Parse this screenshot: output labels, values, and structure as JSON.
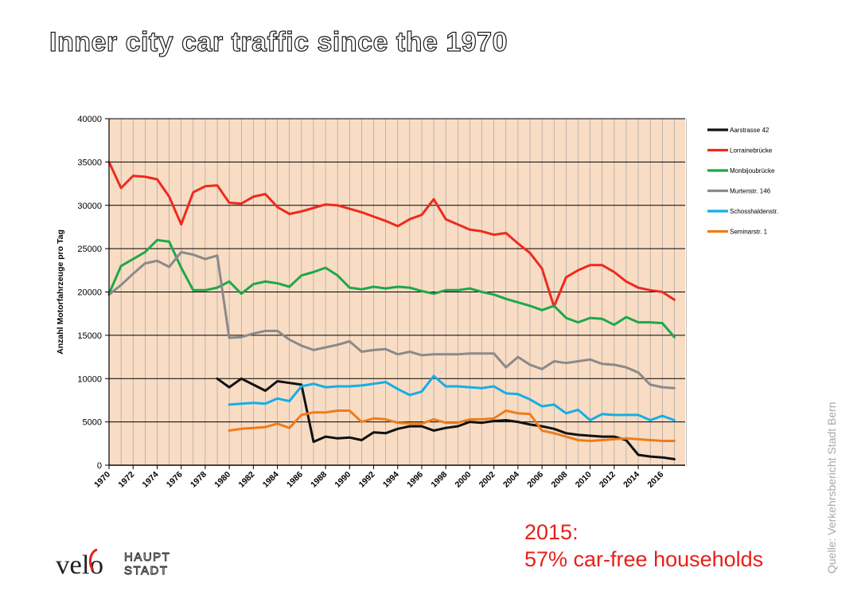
{
  "slide": {
    "title": "Inner city car traffic since the 1970",
    "callout_year": "2015:",
    "callout_text": "57% car-free households",
    "source": "Quelle: Verkehrsbericht Stadt Bern",
    "logo_top": "HAUPT",
    "logo_bottom": "STADT",
    "logo_velo": "velo"
  },
  "colors": {
    "plot_bg": "#f8dcc4",
    "grid_major": "#000000",
    "grid_minor": "#9a9a9a"
  },
  "chart_data": {
    "type": "line",
    "title": "",
    "xlabel": "",
    "ylabel": "Anzahl Motorfahrzeuge pro Tag",
    "xlim": [
      1970,
      2017
    ],
    "ylim": [
      0,
      40000
    ],
    "yticks": [
      0,
      5000,
      10000,
      15000,
      20000,
      25000,
      30000,
      35000,
      40000
    ],
    "ytick_labels": [
      "0",
      "5000",
      "10000",
      "15000",
      "20000",
      "25000",
      "30000",
      "35000",
      "40000"
    ],
    "xtick_labels": [
      "1970",
      "1972",
      "1974",
      "1976",
      "1978",
      "1980",
      "1982",
      "1984",
      "1986",
      "1988",
      "1990",
      "1992",
      "1994",
      "1996",
      "1998",
      "2000",
      "2002",
      "2004",
      "2006",
      "2008",
      "2010",
      "2012",
      "2014",
      "2016"
    ],
    "xticks": [
      1970,
      1972,
      1974,
      1976,
      1978,
      1980,
      1982,
      1984,
      1986,
      1988,
      1990,
      1992,
      1994,
      1996,
      1998,
      2000,
      2002,
      2004,
      2006,
      2008,
      2010,
      2012,
      2014,
      2016
    ],
    "grid": true,
    "legend_position": "right",
    "series": [
      {
        "name": "Aarstrasse 42",
        "color": "#111111",
        "x": [
          1979,
          1980,
          1981,
          1982,
          1983,
          1984,
          1985,
          1986,
          1987,
          1988,
          1989,
          1990,
          1991,
          1992,
          1993,
          1994,
          1995,
          1996,
          1997,
          1998,
          1999,
          2000,
          2001,
          2002,
          2003,
          2004,
          2005,
          2006,
          2007,
          2008,
          2009,
          2010,
          2011,
          2012,
          2013,
          2014,
          2015,
          2016,
          2017
        ],
        "y": [
          10000,
          9000,
          10000,
          9300,
          8600,
          9700,
          9500,
          9300,
          2700,
          3300,
          3100,
          3200,
          2900,
          3800,
          3700,
          4200,
          4500,
          4500,
          4000,
          4300,
          4500,
          5000,
          4900,
          5100,
          5200,
          5000,
          4700,
          4500,
          4200,
          3700,
          3500,
          3400,
          3300,
          3300,
          2900,
          1200,
          1000,
          900,
          700
        ]
      },
      {
        "name": "Lorrainebrücke",
        "color": "#ee2a1e",
        "x": [
          1970,
          1971,
          1972,
          1973,
          1974,
          1975,
          1976,
          1977,
          1978,
          1979,
          1980,
          1981,
          1982,
          1983,
          1984,
          1985,
          1986,
          1987,
          1988,
          1989,
          1990,
          1991,
          1992,
          1993,
          1994,
          1995,
          1996,
          1997,
          1998,
          1999,
          2000,
          2001,
          2002,
          2003,
          2004,
          2005,
          2006,
          2007,
          2008,
          2009,
          2010,
          2011,
          2012,
          2013,
          2014,
          2015,
          2016,
          2017
        ],
        "y": [
          35000,
          32000,
          33400,
          33300,
          33000,
          31000,
          27800,
          31500,
          32200,
          32300,
          30300,
          30200,
          31000,
          31300,
          29800,
          29000,
          29300,
          29700,
          30100,
          30000,
          29600,
          29200,
          28700,
          28200,
          27600,
          28400,
          28900,
          30700,
          28400,
          27800,
          27200,
          27000,
          26600,
          26800,
          25600,
          24500,
          22700,
          18300,
          21700,
          22500,
          23100,
          23100,
          22300,
          21200,
          20500,
          20200,
          20000,
          19100
        ]
      },
      {
        "name": "Monbijoubrücke",
        "color": "#1da84a",
        "x": [
          1970,
          1971,
          1972,
          1973,
          1974,
          1975,
          1976,
          1977,
          1978,
          1979,
          1980,
          1981,
          1982,
          1983,
          1984,
          1985,
          1986,
          1987,
          1988,
          1989,
          1990,
          1991,
          1992,
          1993,
          1994,
          1995,
          1996,
          1997,
          1998,
          1999,
          2000,
          2001,
          2002,
          2003,
          2004,
          2005,
          2006,
          2007,
          2008,
          2009,
          2010,
          2011,
          2012,
          2013,
          2014,
          2015,
          2016,
          2017
        ],
        "y": [
          19800,
          23000,
          23800,
          24600,
          26000,
          25800,
          22800,
          20200,
          20200,
          20500,
          21200,
          19800,
          20900,
          21200,
          21000,
          20600,
          21900,
          22300,
          22800,
          21900,
          20500,
          20300,
          20600,
          20400,
          20600,
          20500,
          20100,
          19800,
          20200,
          20200,
          20400,
          20000,
          19700,
          19200,
          18800,
          18400,
          17900,
          18400,
          17000,
          16500,
          17000,
          16900,
          16200,
          17100,
          16500,
          16500,
          16400,
          14800
        ]
      },
      {
        "name": "Murtenstr. 146",
        "color": "#8a8a8a",
        "x": [
          1970,
          1971,
          1972,
          1973,
          1974,
          1975,
          1976,
          1977,
          1978,
          1979,
          1980,
          1981,
          1982,
          1983,
          1984,
          1985,
          1986,
          1987,
          1988,
          1989,
          1990,
          1991,
          1992,
          1993,
          1994,
          1995,
          1996,
          1997,
          1998,
          1999,
          2000,
          2001,
          2002,
          2003,
          2004,
          2005,
          2006,
          2007,
          2008,
          2009,
          2010,
          2011,
          2012,
          2013,
          2014,
          2015,
          2016,
          2017
        ],
        "y": [
          19700,
          20800,
          22100,
          23300,
          23600,
          22900,
          24600,
          24300,
          23800,
          24200,
          14700,
          14800,
          15200,
          15500,
          15500,
          14500,
          13800,
          13300,
          13600,
          13900,
          14300,
          13100,
          13300,
          13400,
          12800,
          13100,
          12700,
          12800,
          12800,
          12800,
          12900,
          12900,
          12900,
          11300,
          12500,
          11600,
          11100,
          12000,
          11800,
          12000,
          12200,
          11700,
          11600,
          11300,
          10700,
          9300,
          9000,
          8900
        ]
      },
      {
        "name": "Schosshaldenstr.",
        "color": "#15aee6",
        "x": [
          1980,
          1981,
          1982,
          1983,
          1984,
          1985,
          1986,
          1987,
          1988,
          1989,
          1990,
          1991,
          1992,
          1993,
          1994,
          1995,
          1996,
          1997,
          1998,
          1999,
          2000,
          2001,
          2002,
          2003,
          2004,
          2005,
          2006,
          2007,
          2008,
          2009,
          2010,
          2011,
          2012,
          2013,
          2014,
          2015,
          2016,
          2017
        ],
        "y": [
          7000,
          7100,
          7200,
          7100,
          7700,
          7400,
          9100,
          9400,
          9000,
          9100,
          9100,
          9200,
          9400,
          9600,
          8800,
          8100,
          8500,
          10300,
          9100,
          9100,
          9000,
          8900,
          9100,
          8300,
          8200,
          7600,
          6800,
          7000,
          6000,
          6400,
          5200,
          5900,
          5800,
          5800,
          5800,
          5200,
          5700,
          5200
        ]
      },
      {
        "name": "Seminarstr. 1",
        "color": "#ef7c1a",
        "x": [
          1980,
          1981,
          1982,
          1983,
          1984,
          1985,
          1986,
          1987,
          1988,
          1989,
          1990,
          1991,
          1992,
          1993,
          1994,
          1995,
          1996,
          1997,
          1998,
          1999,
          2000,
          2001,
          2002,
          2003,
          2004,
          2005,
          2006,
          2007,
          2008,
          2009,
          2010,
          2011,
          2012,
          2013,
          2014,
          2015,
          2016,
          2017
        ],
        "y": [
          4000,
          4200,
          4300,
          4400,
          4800,
          4300,
          5800,
          6100,
          6100,
          6300,
          6300,
          5000,
          5400,
          5300,
          4900,
          4800,
          4800,
          5300,
          4900,
          4900,
          5300,
          5300,
          5400,
          6300,
          6000,
          5900,
          4000,
          3700,
          3300,
          2900,
          2800,
          2900,
          3000,
          3100,
          3000,
          2900,
          2800,
          2800
        ]
      }
    ]
  }
}
